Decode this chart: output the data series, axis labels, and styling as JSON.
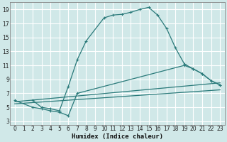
{
  "background_color": "#d0e8e8",
  "grid_color": "#ffffff",
  "line_color": "#2a7a7a",
  "xlabel": "Humidex (Indice chaleur)",
  "xlim": [
    -0.5,
    23.5
  ],
  "ylim": [
    2.5,
    20
  ],
  "xticks": [
    0,
    1,
    2,
    3,
    4,
    5,
    6,
    7,
    8,
    9,
    10,
    11,
    12,
    13,
    14,
    15,
    16,
    17,
    18,
    19,
    20,
    21,
    22,
    23
  ],
  "yticks": [
    3,
    5,
    7,
    9,
    11,
    13,
    15,
    17,
    19
  ],
  "curve1_x": [
    2,
    3,
    4,
    5,
    6,
    7,
    8,
    10,
    11,
    12,
    13,
    14,
    15,
    16,
    17,
    18,
    19,
    20,
    21,
    22,
    23
  ],
  "curve1_y": [
    6.0,
    5.0,
    4.8,
    4.5,
    8.0,
    11.8,
    14.5,
    17.8,
    18.2,
    18.3,
    18.6,
    19.0,
    19.3,
    18.2,
    16.3,
    13.5,
    11.2,
    10.5,
    9.8,
    8.8,
    8.2
  ],
  "curve2_x": [
    0,
    2,
    3,
    4,
    5,
    6,
    7,
    19,
    20,
    21,
    22,
    23
  ],
  "curve2_y": [
    6.0,
    5.0,
    4.8,
    4.5,
    4.3,
    3.8,
    7.0,
    11.0,
    10.5,
    9.8,
    8.8,
    8.2
  ],
  "line3_x": [
    0,
    23
  ],
  "line3_y": [
    5.8,
    8.5
  ],
  "line4_x": [
    0,
    23
  ],
  "line4_y": [
    5.5,
    7.5
  ]
}
